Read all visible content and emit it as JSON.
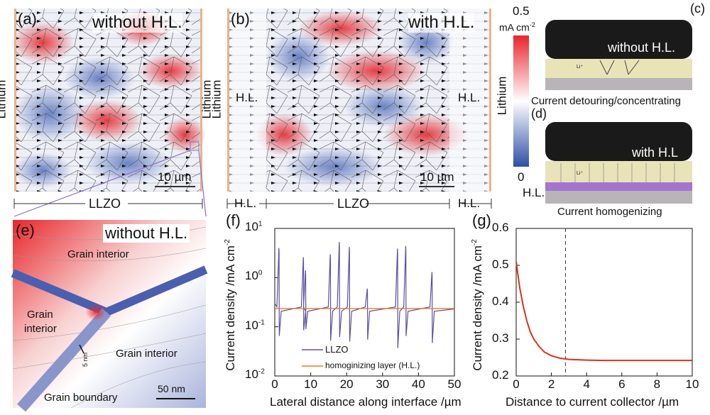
{
  "panels": {
    "a": {
      "label": "(a)",
      "title": "without H.L.",
      "left": "Lithium",
      "right": "Lithium",
      "scale": "10 µm",
      "bottom": "LLZO"
    },
    "b": {
      "label": "(b)",
      "title": "with H.L.",
      "left": "Lithium",
      "hl_left": "H.L.",
      "hl_right": "H.L.",
      "right": "Lithium",
      "scale": "10 µm",
      "bottom_left": "H.L.",
      "bottom_mid": "LLZO",
      "bottom_right": "H.L."
    },
    "colorbar": {
      "max": "0.5",
      "unit": "mA cm",
      "unit_exp": "-2",
      "min": "0",
      "colors": [
        "#e8262b",
        "#ffffff",
        "#2e4fa6"
      ]
    },
    "c": {
      "label": "(c)",
      "title": "without H.L.",
      "ion": "Li⁺",
      "caption": "Current detouring/concentrating"
    },
    "d": {
      "label": "(d)",
      "title": "with H.L",
      "ion": "Li⁺",
      "hl": "H.L.",
      "caption": "Current homogenizing"
    },
    "e": {
      "label": "(e)",
      "title": "without H.L.",
      "gi1": "Grain interior",
      "gi2": "Grain interior",
      "gi2b": "interior",
      "gi2a": "Grain",
      "gi3": "Grain interior",
      "gb": "Grain boundary",
      "width": "5 nm",
      "scale": "50 nm"
    }
  },
  "chart_data": [
    {
      "label": "(f)",
      "type": "line",
      "xlabel": "Lateral distance along interface /µm",
      "ylabel": "Current density /mA cm",
      "ylabel_exp": "-2",
      "xlim": [
        0,
        50
      ],
      "ylim": [
        0.01,
        10
      ],
      "yscale": "log",
      "xticks": [
        "0",
        "10",
        "20",
        "30",
        "40",
        "50"
      ],
      "yticks": [
        {
          "b": "10",
          "e": "-2"
        },
        {
          "b": "10",
          "e": "-1"
        },
        {
          "b": "10",
          "e": "0"
        },
        {
          "b": "10",
          "e": "1"
        }
      ],
      "legend": {
        "placement": "bottom-left",
        "entries": [
          "LLZO",
          "homoginizing layer (H.L.)"
        ]
      },
      "series": [
        {
          "name": "LLZO",
          "color": "#5b4fa3",
          "baseline": 0.23,
          "spikes": [
            [
              1.2,
              4.0,
              0.065
            ],
            [
              8.0,
              2.6,
              0.085
            ],
            [
              8.6,
              1.4,
              0.09
            ],
            [
              15.5,
              3.0,
              0.052
            ],
            [
              18.0,
              5.3,
              0.062
            ],
            [
              20.8,
              4.2,
              0.05
            ],
            [
              25.8,
              0.6,
              0.055
            ],
            [
              34.2,
              3.9,
              0.037
            ],
            [
              36.5,
              4.4,
              0.065
            ],
            [
              43.8,
              1.3,
              0.047
            ]
          ]
        },
        {
          "name": "homoginizing layer (H.L.)",
          "color": "#e8792b",
          "value": 0.235
        }
      ]
    },
    {
      "label": "(g)",
      "type": "line",
      "xlabel": "Distance to current collector /µm",
      "ylabel": "Current density /mA cm",
      "ylabel_exp": "-2",
      "xlim": [
        0,
        10
      ],
      "ylim": [
        0.2,
        0.6
      ],
      "xticks": [
        "0",
        "2",
        "4",
        "6",
        "8",
        "10"
      ],
      "yticks": [
        "0.2",
        "0.3",
        "0.4",
        "0.5",
        "0.6"
      ],
      "vline": 2.8,
      "series": [
        {
          "name": "H.L.",
          "color": "#d9321f",
          "x": [
            0,
            0.2,
            0.4,
            0.6,
            0.8,
            1,
            1.3,
            1.6,
            2,
            2.5,
            3,
            4,
            5,
            6,
            7,
            8,
            9,
            10
          ],
          "y": [
            0.51,
            0.44,
            0.39,
            0.35,
            0.32,
            0.3,
            0.28,
            0.265,
            0.255,
            0.248,
            0.245,
            0.243,
            0.242,
            0.242,
            0.242,
            0.242,
            0.242,
            0.242
          ]
        }
      ]
    }
  ]
}
